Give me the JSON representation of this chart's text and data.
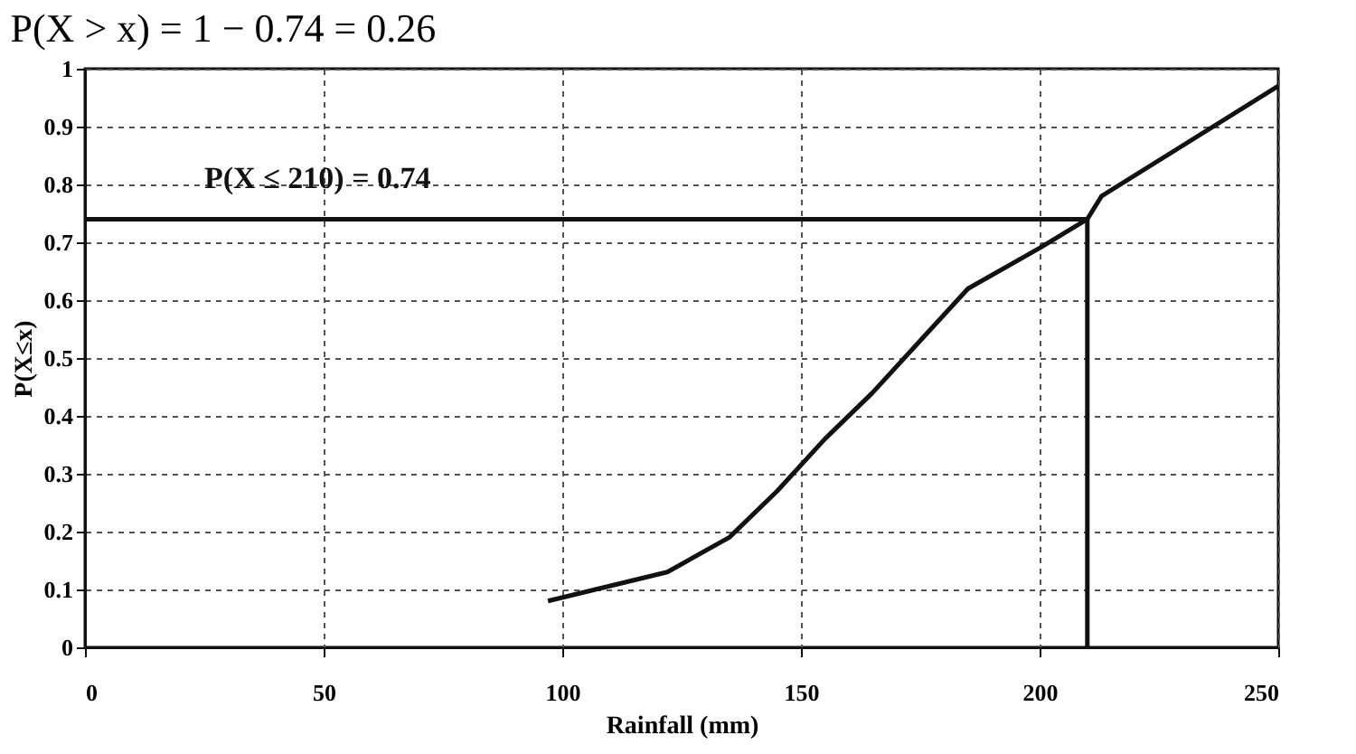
{
  "chart_data": {
    "type": "line",
    "annotations": [
      "P(X > x) = 1 − 0.74 = 0.26"
    ],
    "xlabel": "Rainfall (mm)",
    "ylabel": "P(X≤x)",
    "x": [
      97,
      122,
      135,
      145,
      155,
      165,
      175,
      185,
      200,
      210,
      213,
      250
    ],
    "series": [
      {
        "color": "#111111",
        "values": [
          0.08,
          0.13,
          0.19,
          0.27,
          0.36,
          0.44,
          0.53,
          0.62,
          0.69,
          0.74,
          0.78,
          0.97
        ]
      }
    ],
    "xlim": [
      0,
      250
    ],
    "xticks": [
      0,
      50,
      100,
      150,
      200,
      250
    ],
    "ylim": [
      0,
      1
    ],
    "yticks": [
      0,
      0.1,
      0.2,
      0.3,
      0.4,
      0.5,
      0.6,
      0.7,
      0.8,
      0.9,
      1
    ],
    "ref_lines": [
      {
        "axis": "x",
        "value": 210
      },
      {
        "axis": "y",
        "value": 0.74,
        "label": "P(X ≤ 210) = 0.74"
      }
    ],
    "grid": true,
    "marker": "none",
    "line_style": "solid"
  }
}
